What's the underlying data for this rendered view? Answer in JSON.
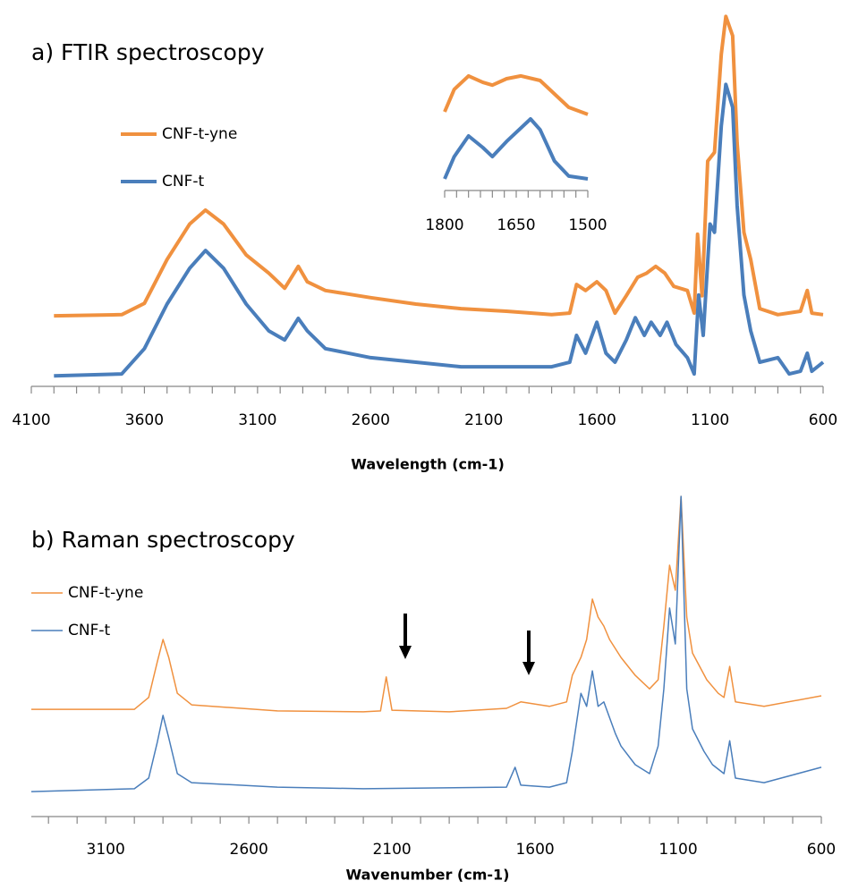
{
  "chart_data": [
    {
      "type": "line",
      "title": "a) FTIR spectroscopy",
      "xlabel": "Wavelength (cm-1)",
      "xlim": [
        4100,
        600
      ],
      "xticks": [
        4100,
        3600,
        3100,
        2600,
        2100,
        1600,
        1100,
        600
      ],
      "minor_xticks": [
        4000,
        3900,
        3800,
        3700,
        3500,
        3400,
        3300,
        3200,
        3000,
        2900,
        2800,
        2700,
        2500,
        2400,
        2300,
        2200,
        2000,
        1900,
        1800,
        1700,
        1500,
        1400,
        1300,
        1200,
        1000,
        900,
        800,
        700
      ],
      "ylim": [
        0,
        100
      ],
      "legend": "upper left",
      "series": [
        {
          "name": "CNF-t-yne",
          "color": "#f0913f",
          "x": [
            4000,
            3700,
            3600,
            3500,
            3400,
            3330,
            3250,
            3150,
            3050,
            2980,
            2920,
            2880,
            2800,
            2600,
            2400,
            2200,
            2000,
            1800,
            1720,
            1690,
            1650,
            1600,
            1560,
            1520,
            1470,
            1420,
            1380,
            1340,
            1300,
            1260,
            1200,
            1170,
            1155,
            1135,
            1110,
            1080,
            1050,
            1030,
            1000,
            980,
            950,
            920,
            880,
            800,
            700,
            670,
            650,
            600
          ],
          "values": [
            18.7,
            19,
            22,
            33.6,
            43,
            46.7,
            43,
            34.8,
            30,
            26,
            31.8,
            27.7,
            25.4,
            23.5,
            21.8,
            20.6,
            19.9,
            19,
            19.4,
            27,
            25.4,
            27.7,
            25.4,
            19.4,
            24,
            28.9,
            30,
            31.8,
            30,
            26.5,
            25.4,
            19.4,
            40.3,
            24,
            59.7,
            62,
            88,
            98,
            92.9,
            64.5,
            40.8,
            33.6,
            20.6,
            19,
            19.9,
            25.4,
            19.4,
            19
          ]
        },
        {
          "name": "CNF-t",
          "color": "#4a7ebb",
          "x": [
            4000,
            3700,
            3600,
            3500,
            3400,
            3330,
            3250,
            3150,
            3050,
            2980,
            2920,
            2880,
            2800,
            2600,
            2400,
            2200,
            1800,
            1720,
            1690,
            1650,
            1600,
            1560,
            1520,
            1470,
            1430,
            1390,
            1360,
            1320,
            1290,
            1250,
            1200,
            1170,
            1150,
            1130,
            1100,
            1080,
            1050,
            1030,
            1000,
            980,
            950,
            920,
            880,
            800,
            750,
            700,
            670,
            650,
            600
          ],
          "values": [
            2.8,
            3.3,
            10,
            21.8,
            31.3,
            36,
            31.3,
            21.8,
            14.7,
            12.3,
            18,
            14.7,
            10,
            7.6,
            6.4,
            5.2,
            5.2,
            6.4,
            13.5,
            8.8,
            17,
            8.8,
            6.4,
            12.3,
            18.2,
            13.5,
            17,
            13.5,
            17,
            11.1,
            7.6,
            3.3,
            24.2,
            13.5,
            43,
            40.8,
            69,
            80,
            73.9,
            47.9,
            24.2,
            14.7,
            6.4,
            7.6,
            3.3,
            4,
            8.8,
            4,
            6.4
          ]
        }
      ]
    },
    {
      "type": "line",
      "xlim": [
        1800,
        1500
      ],
      "xticks": [
        1800,
        1650,
        1500
      ],
      "minor_xticks": [
        1775,
        1750,
        1725,
        1700,
        1675,
        1625,
        1600,
        1575,
        1550,
        1525
      ],
      "ylim": [
        0,
        100
      ],
      "series": [
        {
          "color": "#f0913f",
          "x": [
            1800,
            1780,
            1750,
            1720,
            1700,
            1670,
            1640,
            1600,
            1570,
            1540,
            1500
          ],
          "values": [
            57.5,
            73.9,
            83.7,
            79,
            77,
            81.7,
            83.7,
            80.4,
            70.6,
            60.8,
            55.6
          ]
        },
        {
          "color": "#4a7ebb",
          "x": [
            1800,
            1780,
            1750,
            1720,
            1700,
            1670,
            1620,
            1600,
            1570,
            1540,
            1500
          ],
          "values": [
            8.5,
            24.8,
            39.9,
            31.4,
            24.8,
            35.9,
            52.3,
            44.4,
            21.6,
            10.5,
            8.5
          ]
        }
      ]
    },
    {
      "type": "line",
      "title": "b) Raman spectroscopy",
      "xlabel": "Wavenumber (cm-1)",
      "xlim": [
        3360,
        600
      ],
      "xticks": [
        3100,
        2600,
        2100,
        1600,
        1100,
        600
      ],
      "minor_xticks": [
        3300,
        3200,
        3000,
        2900,
        2800,
        2700,
        2500,
        2400,
        2300,
        2200,
        2000,
        1900,
        1800,
        1700,
        1500,
        1400,
        1300,
        1200,
        1000,
        900,
        800,
        700
      ],
      "ylim": [
        0,
        100
      ],
      "legend": "upper left",
      "series": [
        {
          "name": "CNF-t-yne",
          "color": "#f0913f",
          "x": [
            3360,
            3000,
            2950,
            2920,
            2900,
            2880,
            2850,
            2800,
            2500,
            2200,
            2140,
            2120,
            2100,
            1900,
            1700,
            1650,
            1550,
            1490,
            1470,
            1440,
            1420,
            1400,
            1380,
            1360,
            1340,
            1300,
            1250,
            1200,
            1170,
            1150,
            1130,
            1110,
            1090,
            1070,
            1050,
            1000,
            960,
            940,
            920,
            900,
            800,
            600
          ],
          "values": [
            33.5,
            33.5,
            37.2,
            48.3,
            55.3,
            49.7,
            38.5,
            34.9,
            33,
            32.7,
            33,
            43.6,
            33.2,
            32.7,
            33.8,
            35.8,
            34.4,
            35.8,
            44.1,
            49.7,
            55.3,
            67.9,
            62.3,
            59.5,
            55.3,
            49.7,
            44.1,
            39.9,
            42.7,
            59.5,
            78.5,
            70.7,
            100,
            62.3,
            51.1,
            42.7,
            38.5,
            37.2,
            46.9,
            35.8,
            34.4,
            37.7
          ]
        },
        {
          "name": "CNF-t",
          "color": "#4a7ebb",
          "x": [
            3360,
            3000,
            2950,
            2920,
            2900,
            2880,
            2850,
            2800,
            2500,
            2200,
            1700,
            1670,
            1650,
            1550,
            1490,
            1470,
            1440,
            1420,
            1400,
            1380,
            1360,
            1320,
            1300,
            1250,
            1200,
            1170,
            1150,
            1130,
            1110,
            1090,
            1070,
            1050,
            1010,
            980,
            940,
            920,
            900,
            800,
            600
          ],
          "values": [
            7.8,
            8.7,
            12,
            23.2,
            31.6,
            24.6,
            13.4,
            10.6,
            9.2,
            8.7,
            9.2,
            15.4,
            9.8,
            9.2,
            10.6,
            20.4,
            38.5,
            34.4,
            45.5,
            34.4,
            35.8,
            26,
            22,
            16.2,
            13.4,
            22,
            39.9,
            65.1,
            53.9,
            100,
            39.9,
            27.4,
            20.4,
            16.2,
            13.4,
            23.7,
            12,
            10.6,
            15.4
          ]
        }
      ]
    }
  ]
}
